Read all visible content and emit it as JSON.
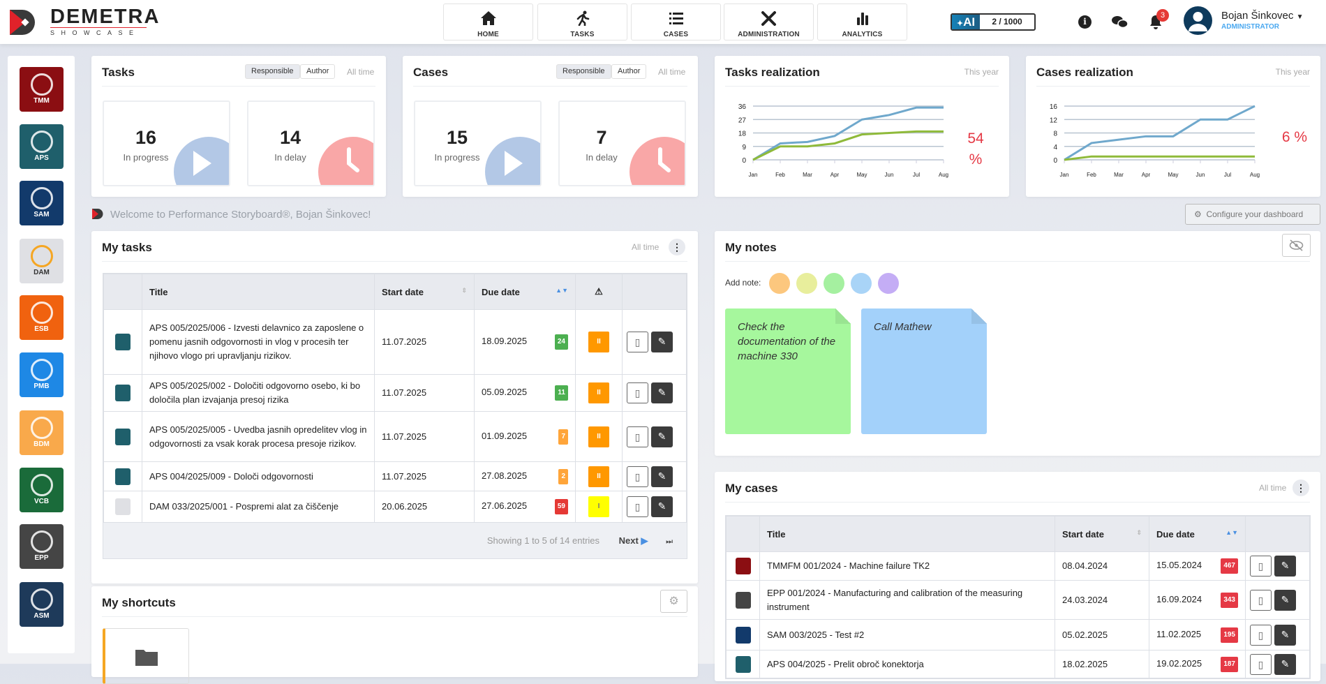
{
  "header": {
    "brand": "DEMETRA",
    "brand_sub": "SHOWCASE",
    "nav": [
      {
        "label": "HOME",
        "icon": "home-icon"
      },
      {
        "label": "TASKS",
        "icon": "runner-icon"
      },
      {
        "label": "CASES",
        "icon": "list-icon"
      },
      {
        "label": "ADMINISTRATION",
        "icon": "tools-icon"
      },
      {
        "label": "ANALYTICS",
        "icon": "bar-chart-icon"
      }
    ],
    "ai_label": "AI",
    "ai_usage": "2 / 1000",
    "notifications_count": "3",
    "user_name": "Bojan Šinkovec",
    "user_role": "ADMINISTRATOR"
  },
  "sidebar": {
    "apps": [
      {
        "label": "TMM",
        "color": "#8b0e12"
      },
      {
        "label": "APS",
        "color": "#1f5f6b"
      },
      {
        "label": "SAM",
        "color": "#123a6b"
      },
      {
        "label": "DAM",
        "color": "#dfe0e4"
      },
      {
        "label": "ESB",
        "color": "#f0620f"
      },
      {
        "label": "PMB",
        "color": "#1e88e5"
      },
      {
        "label": "BDM",
        "color": "#f9a94b"
      },
      {
        "label": "VCB",
        "color": "#1a6b3a"
      },
      {
        "label": "EPP",
        "color": "#454545"
      },
      {
        "label": "ASM",
        "color": "#1e3a5a"
      }
    ]
  },
  "tasks_card": {
    "title": "Tasks",
    "filter_a": "Responsible",
    "filter_b": "Author",
    "period": "All time",
    "in_progress": "16",
    "in_progress_label": "In progress",
    "in_delay": "14",
    "in_delay_label": "In delay"
  },
  "cases_card": {
    "title": "Cases",
    "filter_a": "Responsible",
    "filter_b": "Author",
    "period": "All time",
    "in_progress": "15",
    "in_progress_label": "In progress",
    "in_delay": "7",
    "in_delay_label": "In delay"
  },
  "chart_data": [
    {
      "type": "line",
      "title": "Tasks realization",
      "period": "This year",
      "categories": [
        "Jan",
        "Feb",
        "Mar",
        "Apr",
        "May",
        "Jun",
        "Jul",
        "Aug"
      ],
      "yticks": [
        0,
        9,
        18,
        27,
        36
      ],
      "ylim": [
        0,
        36
      ],
      "grid": true,
      "series": [
        {
          "values": [
            0,
            11,
            12,
            16,
            27,
            30,
            35,
            35
          ],
          "color": "#6fa8cc"
        },
        {
          "values": [
            0,
            9,
            9,
            11,
            17,
            18,
            19,
            19
          ],
          "color": "#8fba3a"
        }
      ],
      "percent": "54",
      "percent_unit": "%"
    },
    {
      "type": "line",
      "title": "Cases realization",
      "period": "This year",
      "categories": [
        "Jan",
        "Feb",
        "Mar",
        "Apr",
        "May",
        "Jun",
        "Jul",
        "Aug"
      ],
      "yticks": [
        0,
        4,
        8,
        12,
        16
      ],
      "ylim": [
        0,
        16
      ],
      "grid": true,
      "series": [
        {
          "values": [
            0,
            5,
            6,
            7,
            7,
            12,
            12,
            16
          ],
          "color": "#6fa8cc"
        },
        {
          "values": [
            0,
            1,
            1,
            1,
            1,
            1,
            1,
            1
          ],
          "color": "#8fba3a"
        }
      ],
      "percent": "6 %"
    }
  ],
  "welcome": "Welcome to Performance Storyboard®, Bojan Šinkovec!",
  "configure_label": "Configure your dashboard",
  "my_tasks": {
    "title": "My tasks",
    "period": "All time",
    "columns": [
      "",
      "Title",
      "Start date",
      "Due date",
      "⚠",
      ""
    ],
    "rows": [
      {
        "app": "APS",
        "color": "#1f5f6b",
        "title": "APS 005/2025/006 - Izvesti delavnico za zaposlene o pomenu jasnih odgovornosti in vlog v procesih ter njihovo vlogo pri upravljanju rizikov.",
        "start": "11.07.2025",
        "due": "18.09.2025",
        "days": "24",
        "days_color": "#4caf50",
        "warn": "II",
        "warn_color": "#ff9800"
      },
      {
        "app": "APS",
        "color": "#1f5f6b",
        "title": "APS 005/2025/002 - Določiti odgovorno osebo, ki bo določila plan izvajanja presoj rizika",
        "start": "11.07.2025",
        "due": "05.09.2025",
        "days": "11",
        "days_color": "#4caf50",
        "warn": "II",
        "warn_color": "#ff9800"
      },
      {
        "app": "APS",
        "color": "#1f5f6b",
        "title": "APS 005/2025/005 - Uvedba jasnih opredelitev vlog in odgovornosti za vsak korak procesa presoje rizikov.",
        "start": "11.07.2025",
        "due": "01.09.2025",
        "days": "7",
        "days_color": "#ffa53a",
        "warn": "II",
        "warn_color": "#ff9800"
      },
      {
        "app": "APS",
        "color": "#1f5f6b",
        "title": "APS 004/2025/009 - Določi odgovornosti",
        "start": "11.07.2025",
        "due": "27.08.2025",
        "days": "2",
        "days_color": "#ffa53a",
        "warn": "II",
        "warn_color": "#ff9800"
      },
      {
        "app": "DAM",
        "color": "#dfe0e4",
        "title": "DAM 033/2025/001 - Pospremi alat za čiščenje",
        "start": "20.06.2025",
        "due": "27.06.2025",
        "days": "59",
        "days_color": "#e53935",
        "warn": "I",
        "warn_color": "#ffff00"
      }
    ],
    "showing": "Showing 1 to 5 of 14 entries",
    "next": "Next"
  },
  "my_shortcuts": {
    "title": "My shortcuts"
  },
  "my_notes": {
    "title": "My notes",
    "add_note": "Add note:",
    "colors": [
      "#fcc77e",
      "#e8ee9c",
      "#a5f0a0",
      "#a9d4f7",
      "#c4adf5"
    ],
    "notes": [
      {
        "text": "Check the documentation of the machine 330",
        "color": "#a6f79d"
      },
      {
        "text": "Call Mathew",
        "color": "#a3d1fa"
      }
    ]
  },
  "my_cases": {
    "title": "My cases",
    "period": "All time",
    "columns": [
      "",
      "Title",
      "Start date",
      "Due date",
      ""
    ],
    "rows": [
      {
        "app": "TMM",
        "color": "#8b0e12",
        "title": "TMMFM 001/2024 - Machine failure TK2",
        "start": "08.04.2024",
        "due": "15.05.2024",
        "days": "467"
      },
      {
        "app": "EPP",
        "color": "#454545",
        "title": "EPP 001/2024 - Manufacturing and calibration of the measuring instrument",
        "start": "24.03.2024",
        "due": "16.09.2024",
        "days": "343"
      },
      {
        "app": "SAM",
        "color": "#123a6b",
        "title": "SAM 003/2025 - Test #2",
        "start": "05.02.2025",
        "due": "11.02.2025",
        "days": "195"
      },
      {
        "app": "APS",
        "color": "#1f5f6b",
        "title": "APS 004/2025 - Prelit obroč konektorja",
        "start": "18.02.2025",
        "due": "19.02.2025",
        "days": "187"
      }
    ]
  }
}
